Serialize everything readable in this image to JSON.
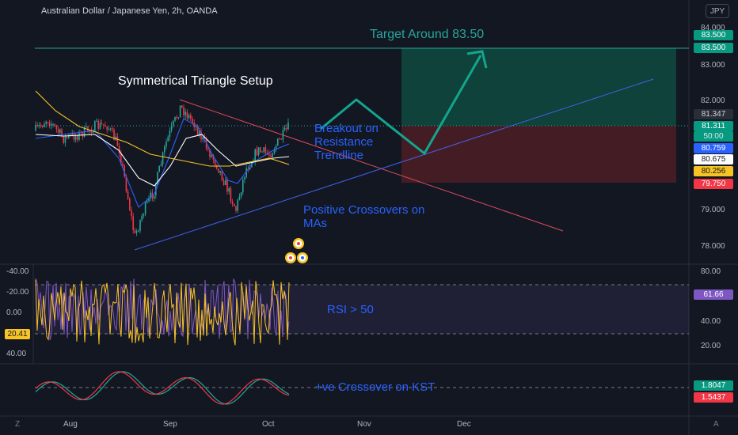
{
  "header": {
    "title": "Australian Dollar / Japanese Yen, 2h, OANDA",
    "currency": "JPY"
  },
  "annotations": {
    "setup": "Symmetrical Triangle Setup",
    "target": "Target Around 83.50",
    "breakout": "Breakout on\nResistance\nTrendline",
    "crossovers": "Positive Crossovers on\nMAs",
    "rsi": "RSI > 50",
    "kst": "+ve Crossover on KST"
  },
  "price_axis": {
    "ticks": [
      "84.000",
      "83.000",
      "82.000",
      "79.000",
      "78.000"
    ],
    "tags": [
      {
        "label": "83.500",
        "bg": "#089981",
        "fg": "#ffffff"
      },
      {
        "label": "83.500",
        "bg": "#089981",
        "fg": "#ffffff"
      },
      {
        "label": "81.347",
        "bg": "#2a2e39",
        "fg": "#d1d4dc"
      },
      {
        "label": "81.311",
        "bg": "#089981",
        "fg": "#ffffff"
      },
      {
        "label": "50:00",
        "bg": "#089981",
        "fg": "#d1f0e8"
      },
      {
        "label": "80.759",
        "bg": "#2962ff",
        "fg": "#ffffff"
      },
      {
        "label": "80.675",
        "bg": "#ffffff",
        "fg": "#131722"
      },
      {
        "label": "80.256",
        "bg": "#f7c325",
        "fg": "#131722"
      },
      {
        "label": "79.750",
        "bg": "#f23645",
        "fg": "#ffffff"
      }
    ]
  },
  "rsi_axis": {
    "ticks": [
      "80.00",
      "40.00",
      "20.00"
    ],
    "tag": {
      "label": "61.66",
      "bg": "#7e57c2",
      "fg": "#ffffff"
    }
  },
  "left_axis": {
    "ticks": [
      "-40.00",
      "-20.00",
      "0.00",
      "40.00"
    ],
    "tag": {
      "label": "20.41",
      "bg": "#f7c325",
      "fg": "#131722"
    }
  },
  "kst_axis": {
    "tags": [
      {
        "label": "1.8047",
        "bg": "#089981",
        "fg": "#ffffff"
      },
      {
        "label": "1.5437",
        "bg": "#f23645",
        "fg": "#ffffff"
      }
    ]
  },
  "time_axis": {
    "ticks": [
      "Aug",
      "Sep",
      "Oct",
      "Nov",
      "Dec"
    ]
  },
  "corner": {
    "left": "Z",
    "right": "A"
  },
  "colors": {
    "background": "#131722",
    "up": "#26a69a",
    "down": "#f23645",
    "accent": "#2962ff"
  },
  "icons": [
    "events-icon",
    "dividends-icon"
  ]
}
